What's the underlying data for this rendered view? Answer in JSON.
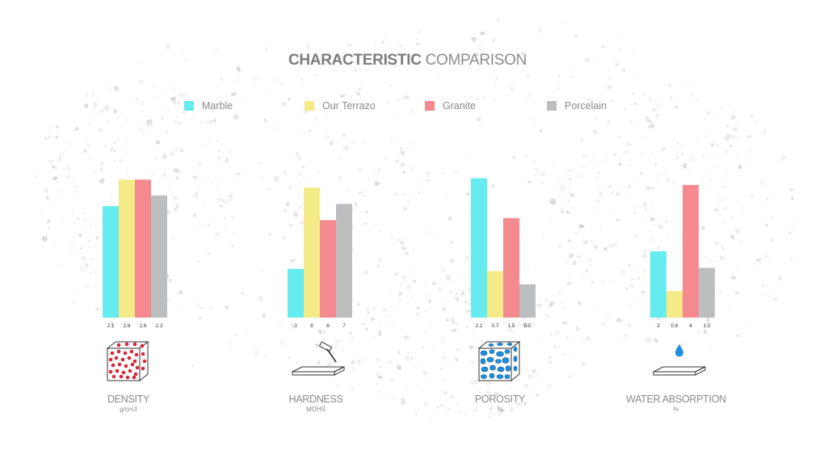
{
  "title": {
    "bold": "CHARACTERISTIC",
    "light": " COMPARISON"
  },
  "colors": {
    "Marble": "#66ecee",
    "Our Terrazo": "#f5ea88",
    "Granite": "#f4898f",
    "Porcelain": "#bcbdbe"
  },
  "chart_data": {
    "type": "bar",
    "legend_position": "top",
    "series_names": [
      "Marble",
      "Our Terrazo",
      "Granite",
      "Porcelain"
    ],
    "groups": [
      {
        "name": "DENSITY",
        "unit": "g/cm3",
        "icon": "molecule-cube-icon",
        "values": [
          2.1,
          2.6,
          2.6,
          2.3
        ],
        "labels": [
          "2.1",
          "2.6",
          "2.6",
          "2.3"
        ],
        "ylim": [
          0,
          3.0
        ]
      },
      {
        "name": "HARDNESS",
        "unit": "MOHS",
        "icon": "hammer-slab-icon",
        "values": [
          3,
          8,
          6,
          7
        ],
        "labels": [
          "3",
          "8",
          "6",
          "7"
        ],
        "ylim": [
          0,
          9.8
        ]
      },
      {
        "name": "POROSITY",
        "unit": "%",
        "icon": "porous-cube-icon",
        "values": [
          2.1,
          0.7,
          1.5,
          0.5
        ],
        "labels": [
          "2.1",
          "0.7",
          "1.5",
          "0.5"
        ],
        "ylim": [
          0,
          2.4
        ]
      },
      {
        "name": "WATER ABSORPTION",
        "unit": "%",
        "icon": "water-drop-slab-icon",
        "values": [
          2,
          0.8,
          4,
          1.5
        ],
        "labels": [
          "2",
          "0.8",
          "4",
          "1.5"
        ],
        "ylim": [
          0,
          4.8
        ]
      }
    ]
  }
}
